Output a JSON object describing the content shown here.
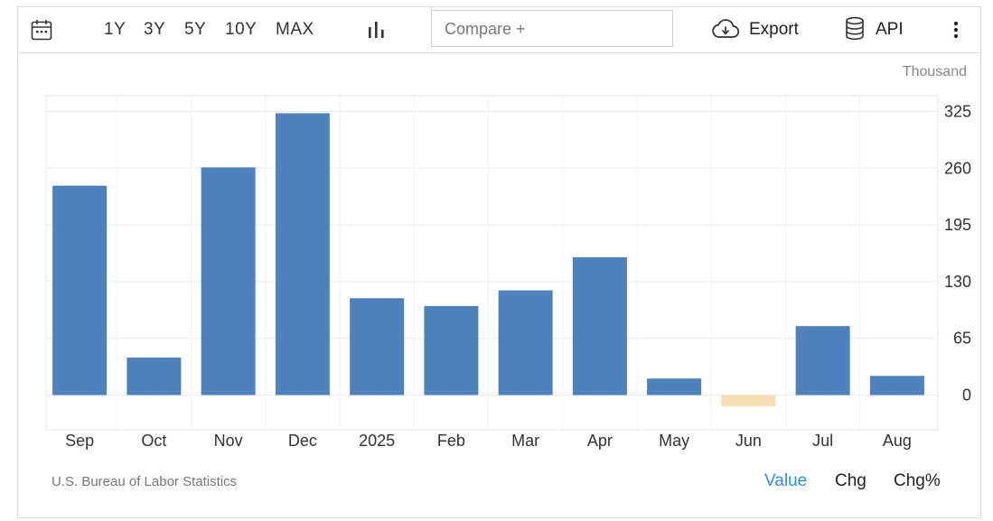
{
  "toolbar": {
    "ranges": [
      "1Y",
      "3Y",
      "5Y",
      "10Y",
      "MAX"
    ],
    "compare_placeholder": "Compare +",
    "export_label": "Export",
    "api_label": "API",
    "icons": {
      "calendar": "calendar-icon",
      "chart_type": "bar-chart-icon",
      "export": "cloud-download-icon",
      "api": "database-icon",
      "more": "more-vertical-icon"
    }
  },
  "unit_label": "Thousand",
  "source": "U.S. Bureau of Labor Statistics",
  "view_modes": {
    "value": "Value",
    "chg": "Chg",
    "chg_pct": "Chg%",
    "active": "Value"
  },
  "colors": {
    "positive_bar": "#4f81bd",
    "negative_bar": "#f5deb3",
    "active_mode": "#2f8fe8",
    "grid": "#ececec"
  },
  "chart_data": {
    "type": "bar",
    "categories": [
      "Sep",
      "Oct",
      "Nov",
      "Dec",
      "2025",
      "Feb",
      "Mar",
      "Apr",
      "May",
      "Jun",
      "Jul",
      "Aug"
    ],
    "values": [
      240,
      43,
      261,
      323,
      111,
      102,
      120,
      158,
      19,
      -13,
      79,
      22
    ],
    "y_ticks": [
      0,
      65,
      130,
      195,
      260,
      325
    ],
    "ylim": [
      -40,
      345
    ],
    "yaxis_position": "right",
    "grid": true,
    "legend": "none"
  }
}
